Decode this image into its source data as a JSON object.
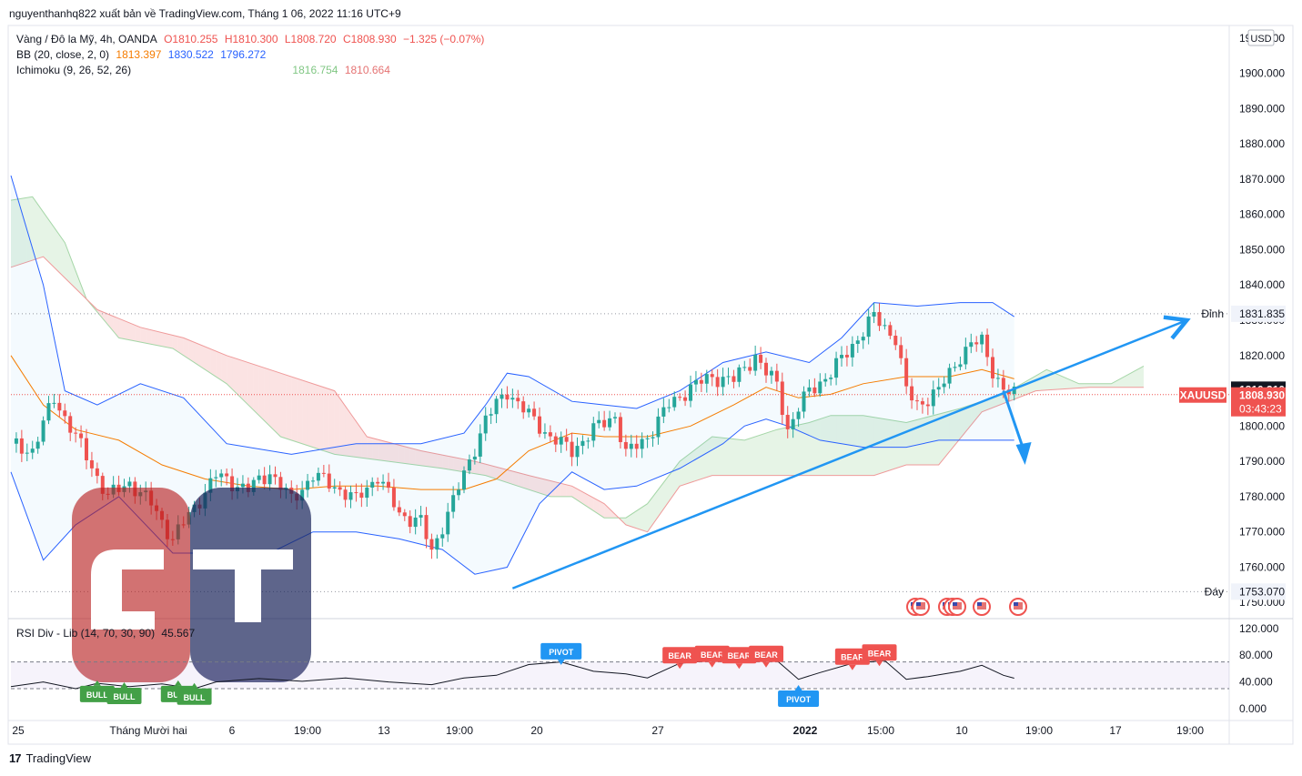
{
  "header": {
    "publish_line": "nguyenthanhq822 xuất bản về TradingView.com, Tháng 1 06, 2022 11:16 UTC+9"
  },
  "legend": {
    "symbol_line": "Vàng / Đô la Mỹ, 4h, OANDA",
    "ohlc": {
      "o": "O1810.255",
      "h": "H1810.300",
      "l": "L1808.720",
      "c": "C1808.930",
      "chg": "−1.325 (−0.07%)"
    },
    "bb_label": "BB (20, close, 2, 0)",
    "bb_values": [
      "1813.397",
      "1830.522",
      "1796.272"
    ],
    "ichimoku_label": "Ichimoku (9, 26, 52, 26)",
    "ichimoku_values": [
      "1816.754",
      "1810.664"
    ]
  },
  "rsi_legend": {
    "label": "RSI Div - Lib (14, 70, 30, 90)",
    "value": "45.567"
  },
  "footer": {
    "brand": "TradingView",
    "logo_mark": "17"
  },
  "colors": {
    "up": "#26a69a",
    "down": "#ef5350",
    "bb_band": "#2962ff",
    "bb_basis": "#f57c00",
    "trendline": "#2196f3",
    "cloud_green": "#a5d6a7",
    "cloud_red": "#ef9a9a",
    "rsi_line": "#131722",
    "bull": "#43a047",
    "bear": "#ef5350",
    "pivot": "#2196f3"
  },
  "chart_data": {
    "type": "candlestick",
    "symbol": "XAUUSD",
    "timeframe": "4h",
    "currency": "USD",
    "price_axis": {
      "ticks": [
        "1910.000",
        "1900.000",
        "1890.000",
        "1880.000",
        "1870.000",
        "1860.000",
        "1850.000",
        "1840.000",
        "1830.000",
        "1820.000",
        "1810.000",
        "1800.000",
        "1790.000",
        "1780.000",
        "1770.000",
        "1760.000",
        "1750.000"
      ],
      "ylim": [
        1748,
        1912
      ]
    },
    "time_axis": {
      "labels": [
        "25",
        "Tháng Mười hai",
        "6",
        "19:00",
        "13",
        "19:00",
        "20",
        "27",
        "2022",
        "15:00",
        "10",
        "19:00",
        "17",
        "19:00"
      ],
      "bold": [
        "2022"
      ]
    },
    "price_labels": [
      {
        "tag": "Đỉnh",
        "value": "1831.835",
        "style": "neutral"
      },
      {
        "tag": "",
        "value": "1810.310",
        "style": "dark"
      },
      {
        "tag": "XAUUSD",
        "value": "1808.930",
        "sub": "03:43:23",
        "style": "red"
      },
      {
        "tag": "Đáy",
        "value": "1753.070",
        "style": "neutral"
      }
    ],
    "levels": {
      "top": 1831.835,
      "bottom": 1753.07,
      "last_close": 1808.93,
      "prev_close": 1810.31
    },
    "close_path": [
      {
        "x": 0,
        "y": 1795
      },
      {
        "x": 4,
        "y": 1793
      },
      {
        "x": 8,
        "y": 1808
      },
      {
        "x": 12,
        "y": 1797
      },
      {
        "x": 18,
        "y": 1780
      },
      {
        "x": 22,
        "y": 1784
      },
      {
        "x": 26,
        "y": 1778
      },
      {
        "x": 30,
        "y": 1768
      },
      {
        "x": 34,
        "y": 1777
      },
      {
        "x": 38,
        "y": 1786
      },
      {
        "x": 44,
        "y": 1782
      },
      {
        "x": 48,
        "y": 1787
      },
      {
        "x": 52,
        "y": 1779
      },
      {
        "x": 56,
        "y": 1786
      },
      {
        "x": 60,
        "y": 1783
      },
      {
        "x": 64,
        "y": 1779
      },
      {
        "x": 68,
        "y": 1786
      },
      {
        "x": 72,
        "y": 1775
      },
      {
        "x": 76,
        "y": 1773
      },
      {
        "x": 78,
        "y": 1764
      },
      {
        "x": 80,
        "y": 1772
      },
      {
        "x": 84,
        "y": 1786
      },
      {
        "x": 88,
        "y": 1802
      },
      {
        "x": 92,
        "y": 1810
      },
      {
        "x": 96,
        "y": 1803
      },
      {
        "x": 100,
        "y": 1797
      },
      {
        "x": 104,
        "y": 1793
      },
      {
        "x": 108,
        "y": 1799
      },
      {
        "x": 112,
        "y": 1803
      },
      {
        "x": 114,
        "y": 1792
      },
      {
        "x": 118,
        "y": 1797
      },
      {
        "x": 122,
        "y": 1806
      },
      {
        "x": 126,
        "y": 1811
      },
      {
        "x": 130,
        "y": 1814
      },
      {
        "x": 134,
        "y": 1813
      },
      {
        "x": 138,
        "y": 1820
      },
      {
        "x": 140,
        "y": 1815
      },
      {
        "x": 142,
        "y": 1812
      },
      {
        "x": 144,
        "y": 1799
      },
      {
        "x": 146,
        "y": 1805
      },
      {
        "x": 148,
        "y": 1810
      },
      {
        "x": 152,
        "y": 1815
      },
      {
        "x": 156,
        "y": 1823
      },
      {
        "x": 160,
        "y": 1831
      },
      {
        "x": 164,
        "y": 1825
      },
      {
        "x": 166,
        "y": 1810
      },
      {
        "x": 168,
        "y": 1806
      },
      {
        "x": 172,
        "y": 1810
      },
      {
        "x": 176,
        "y": 1820
      },
      {
        "x": 178,
        "y": 1823
      },
      {
        "x": 180,
        "y": 1824
      },
      {
        "x": 182,
        "y": 1816
      },
      {
        "x": 184,
        "y": 1810
      },
      {
        "x": 186,
        "y": 1808.93
      }
    ],
    "bb_upper_path": [
      {
        "x": 0,
        "y": 1871
      },
      {
        "x": 6,
        "y": 1840
      },
      {
        "x": 10,
        "y": 1810
      },
      {
        "x": 16,
        "y": 1806
      },
      {
        "x": 24,
        "y": 1812
      },
      {
        "x": 32,
        "y": 1808
      },
      {
        "x": 40,
        "y": 1795
      },
      {
        "x": 52,
        "y": 1792
      },
      {
        "x": 64,
        "y": 1795
      },
      {
        "x": 76,
        "y": 1795
      },
      {
        "x": 84,
        "y": 1798
      },
      {
        "x": 88,
        "y": 1806
      },
      {
        "x": 92,
        "y": 1815
      },
      {
        "x": 96,
        "y": 1814
      },
      {
        "x": 104,
        "y": 1807
      },
      {
        "x": 110,
        "y": 1806
      },
      {
        "x": 116,
        "y": 1805
      },
      {
        "x": 124,
        "y": 1810
      },
      {
        "x": 132,
        "y": 1818
      },
      {
        "x": 140,
        "y": 1821
      },
      {
        "x": 148,
        "y": 1818
      },
      {
        "x": 154,
        "y": 1825
      },
      {
        "x": 160,
        "y": 1835
      },
      {
        "x": 168,
        "y": 1834
      },
      {
        "x": 176,
        "y": 1835
      },
      {
        "x": 182,
        "y": 1835
      },
      {
        "x": 186,
        "y": 1831
      }
    ],
    "bb_lower_path": [
      {
        "x": 0,
        "y": 1787
      },
      {
        "x": 6,
        "y": 1762
      },
      {
        "x": 12,
        "y": 1772
      },
      {
        "x": 20,
        "y": 1780
      },
      {
        "x": 30,
        "y": 1764
      },
      {
        "x": 38,
        "y": 1764
      },
      {
        "x": 48,
        "y": 1764
      },
      {
        "x": 56,
        "y": 1770
      },
      {
        "x": 64,
        "y": 1770
      },
      {
        "x": 72,
        "y": 1768
      },
      {
        "x": 80,
        "y": 1765
      },
      {
        "x": 86,
        "y": 1758
      },
      {
        "x": 92,
        "y": 1760
      },
      {
        "x": 98,
        "y": 1778
      },
      {
        "x": 104,
        "y": 1787
      },
      {
        "x": 110,
        "y": 1782
      },
      {
        "x": 116,
        "y": 1783
      },
      {
        "x": 124,
        "y": 1788
      },
      {
        "x": 132,
        "y": 1795
      },
      {
        "x": 136,
        "y": 1800
      },
      {
        "x": 140,
        "y": 1802
      },
      {
        "x": 144,
        "y": 1800
      },
      {
        "x": 150,
        "y": 1796
      },
      {
        "x": 158,
        "y": 1794
      },
      {
        "x": 166,
        "y": 1794
      },
      {
        "x": 172,
        "y": 1796
      },
      {
        "x": 178,
        "y": 1796
      },
      {
        "x": 186,
        "y": 1796
      }
    ],
    "bb_basis_path": [
      {
        "x": 0,
        "y": 1820
      },
      {
        "x": 6,
        "y": 1806
      },
      {
        "x": 12,
        "y": 1799
      },
      {
        "x": 20,
        "y": 1796
      },
      {
        "x": 28,
        "y": 1789
      },
      {
        "x": 36,
        "y": 1785
      },
      {
        "x": 44,
        "y": 1783
      },
      {
        "x": 52,
        "y": 1782
      },
      {
        "x": 60,
        "y": 1783
      },
      {
        "x": 68,
        "y": 1783
      },
      {
        "x": 76,
        "y": 1782
      },
      {
        "x": 84,
        "y": 1782
      },
      {
        "x": 90,
        "y": 1785
      },
      {
        "x": 96,
        "y": 1793
      },
      {
        "x": 104,
        "y": 1798
      },
      {
        "x": 110,
        "y": 1797
      },
      {
        "x": 118,
        "y": 1797
      },
      {
        "x": 126,
        "y": 1800
      },
      {
        "x": 134,
        "y": 1806
      },
      {
        "x": 140,
        "y": 1811
      },
      {
        "x": 146,
        "y": 1808
      },
      {
        "x": 152,
        "y": 1809
      },
      {
        "x": 158,
        "y": 1812
      },
      {
        "x": 166,
        "y": 1814
      },
      {
        "x": 174,
        "y": 1814
      },
      {
        "x": 180,
        "y": 1816
      },
      {
        "x": 186,
        "y": 1813.4
      }
    ],
    "cloud_a_path": [
      {
        "x": 0,
        "y": 1864
      },
      {
        "x": 4,
        "y": 1865
      },
      {
        "x": 10,
        "y": 1852
      },
      {
        "x": 14,
        "y": 1836
      },
      {
        "x": 20,
        "y": 1825
      },
      {
        "x": 30,
        "y": 1822
      },
      {
        "x": 40,
        "y": 1812
      },
      {
        "x": 50,
        "y": 1797
      },
      {
        "x": 60,
        "y": 1792
      },
      {
        "x": 70,
        "y": 1790
      },
      {
        "x": 80,
        "y": 1788
      },
      {
        "x": 88,
        "y": 1786
      },
      {
        "x": 94,
        "y": 1783
      },
      {
        "x": 100,
        "y": 1780
      },
      {
        "x": 104,
        "y": 1780
      },
      {
        "x": 110,
        "y": 1774
      },
      {
        "x": 114,
        "y": 1774
      },
      {
        "x": 118,
        "y": 1778
      },
      {
        "x": 124,
        "y": 1790
      },
      {
        "x": 130,
        "y": 1797
      },
      {
        "x": 136,
        "y": 1796
      },
      {
        "x": 142,
        "y": 1799
      },
      {
        "x": 148,
        "y": 1801
      },
      {
        "x": 152,
        "y": 1803
      },
      {
        "x": 158,
        "y": 1803
      },
      {
        "x": 166,
        "y": 1801
      },
      {
        "x": 176,
        "y": 1805
      },
      {
        "x": 184,
        "y": 1809
      },
      {
        "x": 192,
        "y": 1816
      },
      {
        "x": 198,
        "y": 1812
      },
      {
        "x": 204,
        "y": 1812
      },
      {
        "x": 210,
        "y": 1817
      }
    ],
    "cloud_b_path": [
      {
        "x": 0,
        "y": 1845
      },
      {
        "x": 6,
        "y": 1848
      },
      {
        "x": 10,
        "y": 1842
      },
      {
        "x": 16,
        "y": 1833
      },
      {
        "x": 24,
        "y": 1828
      },
      {
        "x": 32,
        "y": 1825
      },
      {
        "x": 40,
        "y": 1820
      },
      {
        "x": 50,
        "y": 1815
      },
      {
        "x": 60,
        "y": 1810
      },
      {
        "x": 66,
        "y": 1797
      },
      {
        "x": 76,
        "y": 1793
      },
      {
        "x": 86,
        "y": 1790
      },
      {
        "x": 96,
        "y": 1786
      },
      {
        "x": 104,
        "y": 1783
      },
      {
        "x": 110,
        "y": 1778
      },
      {
        "x": 114,
        "y": 1772
      },
      {
        "x": 118,
        "y": 1770
      },
      {
        "x": 124,
        "y": 1783
      },
      {
        "x": 130,
        "y": 1786
      },
      {
        "x": 140,
        "y": 1786
      },
      {
        "x": 150,
        "y": 1786
      },
      {
        "x": 160,
        "y": 1786
      },
      {
        "x": 166,
        "y": 1789
      },
      {
        "x": 172,
        "y": 1789
      },
      {
        "x": 180,
        "y": 1804
      },
      {
        "x": 190,
        "y": 1810
      },
      {
        "x": 200,
        "y": 1811
      },
      {
        "x": 210,
        "y": 1811
      }
    ],
    "trendline": {
      "from": {
        "x": 93,
        "y": 1754
      },
      "to": {
        "x": 218,
        "y": 1830
      }
    },
    "down_arrow": {
      "from": {
        "x": 184,
        "y": 1810
      },
      "to": {
        "x": 188,
        "y": 1789
      }
    },
    "rsi": {
      "label": "RSI Div - Lib (14, 70, 30, 90)",
      "value": 45.567,
      "ticks": [
        "120.000",
        "80.000",
        "40.000",
        "0.000"
      ],
      "ylim": [
        -15,
        128
      ],
      "overbought": 70,
      "oversold": 30,
      "path": [
        {
          "x": 0,
          "y": 33
        },
        {
          "x": 6,
          "y": 40
        },
        {
          "x": 12,
          "y": 30
        },
        {
          "x": 16,
          "y": 38
        },
        {
          "x": 22,
          "y": 33
        },
        {
          "x": 28,
          "y": 37
        },
        {
          "x": 34,
          "y": 30
        },
        {
          "x": 38,
          "y": 40
        },
        {
          "x": 46,
          "y": 45
        },
        {
          "x": 54,
          "y": 41
        },
        {
          "x": 62,
          "y": 46
        },
        {
          "x": 70,
          "y": 40
        },
        {
          "x": 78,
          "y": 36
        },
        {
          "x": 84,
          "y": 46
        },
        {
          "x": 90,
          "y": 50
        },
        {
          "x": 96,
          "y": 66
        },
        {
          "x": 102,
          "y": 70
        },
        {
          "x": 108,
          "y": 56
        },
        {
          "x": 114,
          "y": 52
        },
        {
          "x": 118,
          "y": 46
        },
        {
          "x": 124,
          "y": 68
        },
        {
          "x": 130,
          "y": 72
        },
        {
          "x": 136,
          "y": 70
        },
        {
          "x": 142,
          "y": 72
        },
        {
          "x": 146,
          "y": 44
        },
        {
          "x": 150,
          "y": 54
        },
        {
          "x": 156,
          "y": 68
        },
        {
          "x": 162,
          "y": 72
        },
        {
          "x": 166,
          "y": 44
        },
        {
          "x": 170,
          "y": 48
        },
        {
          "x": 176,
          "y": 56
        },
        {
          "x": 180,
          "y": 65
        },
        {
          "x": 184,
          "y": 50
        },
        {
          "x": 186,
          "y": 45.567
        }
      ],
      "markers": [
        {
          "text": "BULL",
          "x": 16,
          "y": 22,
          "kind": "bull"
        },
        {
          "text": "BULL",
          "x": 21,
          "y": 19,
          "kind": "bull"
        },
        {
          "text": "BULL",
          "x": 31,
          "y": 22,
          "kind": "bull"
        },
        {
          "text": "BULL",
          "x": 34,
          "y": 18,
          "kind": "bull"
        },
        {
          "text": "PIVOT",
          "x": 102,
          "y": 86,
          "kind": "pivot-up"
        },
        {
          "text": "PIVOT",
          "x": 146,
          "y": 15,
          "kind": "pivot-down"
        },
        {
          "text": "BEAR",
          "x": 124,
          "y": 80,
          "kind": "bear"
        },
        {
          "text": "BEAR",
          "x": 130,
          "y": 82,
          "kind": "bear"
        },
        {
          "text": "BEAR",
          "x": 135,
          "y": 80,
          "kind": "bear"
        },
        {
          "text": "BEAR",
          "x": 140,
          "y": 82,
          "kind": "bear"
        },
        {
          "text": "BEAR",
          "x": 156,
          "y": 78,
          "kind": "bear"
        },
        {
          "text": "BEAR",
          "x": 161,
          "y": 84,
          "kind": "bear"
        }
      ]
    }
  },
  "watermark": {
    "letters": "GT"
  }
}
